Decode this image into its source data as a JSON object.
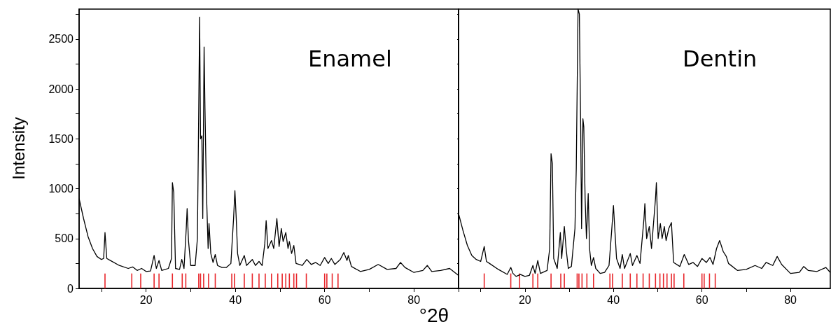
{
  "chart_data": [
    {
      "type": "line",
      "ylabel": "Intensity",
      "xlabel": "°2θ",
      "annotations": [
        "Enamel"
      ],
      "xlim": [
        5,
        90
      ],
      "ylim": [
        0,
        2800
      ],
      "xticks": [
        {
          "value": 10,
          "label": null
        },
        20,
        {
          "value": 30,
          "label": null
        },
        40,
        {
          "value": 50,
          "label": null
        },
        60,
        {
          "value": 70,
          "label": null
        },
        80,
        {
          "value": 90,
          "label": null
        }
      ],
      "yticks": [
        0,
        {
          "value": 250,
          "label": null
        },
        500,
        {
          "value": 750,
          "label": null
        },
        1000,
        {
          "value": 1250,
          "label": null
        },
        1500,
        {
          "value": 1750,
          "label": null
        },
        2000,
        {
          "value": 2250,
          "label": null
        },
        2500,
        {
          "value": 2750,
          "label": null
        }
      ],
      "grid": false,
      "marker": "none",
      "line_style": "solid",
      "series": [
        {
          "color": "#000000",
          "x": [
            5,
            6,
            7,
            8,
            9,
            10,
            10.5,
            10.8,
            11.2,
            12,
            14,
            16,
            17,
            18,
            19,
            20,
            21,
            21.8,
            22.3,
            22.9,
            23.5,
            25,
            25.7,
            25.9,
            26.2,
            26.6,
            27.5,
            28,
            28.5,
            29,
            29.2,
            29.5,
            30,
            31,
            31.5,
            31.8,
            32,
            32.2,
            32.5,
            32.7,
            33,
            33.2,
            33.5,
            33.9,
            34.1,
            34.5,
            35,
            35.5,
            36,
            37,
            38,
            39,
            39.6,
            39.9,
            40.2,
            40.5,
            41,
            42,
            42.5,
            43.8,
            44.5,
            45.3,
            46,
            46.6,
            46.9,
            47.3,
            48.1,
            48.6,
            49.3,
            49.8,
            50.3,
            50.7,
            51.3,
            51.8,
            52.1,
            52.6,
            53.1,
            53.6,
            55,
            56,
            57,
            58,
            59,
            60,
            60.8,
            61.5,
            62.3,
            63.5,
            64.3,
            65,
            65.3,
            66,
            68,
            70,
            72,
            74,
            76,
            77,
            78,
            80,
            82,
            83,
            84,
            86,
            88,
            90
          ],
          "values": [
            900,
            700,
            520,
            400,
            320,
            290,
            300,
            560,
            300,
            280,
            230,
            200,
            215,
            180,
            200,
            170,
            175,
            330,
            200,
            280,
            180,
            200,
            300,
            1060,
            960,
            200,
            190,
            290,
            200,
            600,
            800,
            480,
            230,
            230,
            500,
            1800,
            2720,
            1500,
            1530,
            700,
            2420,
            1800,
            1000,
            400,
            650,
            350,
            260,
            340,
            230,
            210,
            210,
            250,
            700,
            980,
            700,
            350,
            230,
            330,
            230,
            290,
            230,
            270,
            230,
            450,
            680,
            400,
            480,
            400,
            700,
            420,
            600,
            470,
            560,
            400,
            470,
            350,
            430,
            250,
            230,
            290,
            240,
            260,
            230,
            310,
            250,
            300,
            240,
            290,
            360,
            280,
            330,
            220,
            170,
            190,
            240,
            190,
            200,
            260,
            210,
            160,
            180,
            230,
            170,
            180,
            200,
            130
          ]
        },
        {
          "type": "bar",
          "color": "#e8262b",
          "x": [
            10.8,
            16.8,
            18.8,
            21.8,
            22.9,
            25.9,
            28.1,
            28.9,
            31.8,
            32.2,
            32.9,
            34.0,
            35.5,
            39.2,
            39.8,
            42.0,
            43.8,
            45.3,
            46.7,
            48.1,
            49.5,
            50.5,
            51.3,
            52.1,
            53.1,
            53.7,
            55.9,
            60.0,
            60.5,
            61.7,
            63.0
          ],
          "values": [
            150,
            150,
            150,
            150,
            150,
            150,
            150,
            150,
            150,
            150,
            150,
            150,
            150,
            150,
            150,
            150,
            150,
            150,
            150,
            150,
            150,
            150,
            150,
            150,
            150,
            150,
            150,
            150,
            150,
            150,
            150
          ]
        }
      ]
    },
    {
      "type": "line",
      "annotations": [
        "Dentin"
      ],
      "xlim": [
        5,
        89
      ],
      "ylim": [
        0,
        2800
      ],
      "tick_labels": "x",
      "xticks": [
        {
          "value": 10,
          "label": null
        },
        20,
        {
          "value": 30,
          "label": null
        },
        40,
        {
          "value": 50,
          "label": null
        },
        60,
        {
          "value": 70,
          "label": null
        },
        80
      ],
      "yticks": [
        0,
        {
          "value": 250,
          "label": null
        },
        500,
        {
          "value": 750,
          "label": null
        },
        1000,
        {
          "value": 1250,
          "label": null
        },
        1500,
        {
          "value": 1750,
          "label": null
        },
        2000,
        {
          "value": 2250,
          "label": null
        },
        2500,
        {
          "value": 2750,
          "label": null
        }
      ],
      "grid": false,
      "marker": "none",
      "line_style": "solid",
      "series": [
        {
          "color": "#000000",
          "x": [
            5,
            6,
            7,
            8,
            9,
            10,
            10.8,
            11.3,
            12,
            14,
            16,
            16.8,
            17.3,
            18,
            19,
            20,
            21,
            21.8,
            22.3,
            22.9,
            23.5,
            25,
            25.6,
            25.9,
            26.2,
            26.5,
            27.3,
            28,
            28.3,
            28.9,
            29.3,
            29.8,
            30.5,
            31.3,
            31.6,
            32,
            32.3,
            32.6,
            32.8,
            33.1,
            33.3,
            33.6,
            33.9,
            34.3,
            34.6,
            35,
            35.5,
            36,
            37,
            38,
            39,
            39.6,
            40,
            40.3,
            40.7,
            41.5,
            42,
            42.5,
            43.8,
            44.3,
            45.3,
            46,
            46.9,
            47.1,
            47.5,
            48.1,
            48.6,
            49.5,
            49.7,
            50.1,
            50.6,
            51,
            51.5,
            51.9,
            52.5,
            53.1,
            53.6,
            55,
            56,
            57,
            58,
            59,
            60,
            61,
            61.8,
            62.5,
            63.3,
            64,
            64.8,
            65.5,
            66,
            68,
            70,
            72,
            73.5,
            74.5,
            76,
            77,
            78,
            80,
            82,
            83,
            84,
            86,
            88,
            89
          ],
          "values": [
            750,
            580,
            430,
            330,
            290,
            270,
            420,
            270,
            250,
            190,
            140,
            210,
            150,
            120,
            140,
            120,
            130,
            230,
            150,
            280,
            150,
            180,
            400,
            1350,
            1250,
            300,
            200,
            560,
            300,
            620,
            400,
            200,
            220,
            600,
            1200,
            2800,
            2750,
            1600,
            600,
            1700,
            1620,
            900,
            500,
            950,
            400,
            230,
            310,
            200,
            150,
            160,
            230,
            580,
            830,
            600,
            300,
            200,
            340,
            200,
            350,
            230,
            330,
            250,
            700,
            850,
            500,
            620,
            400,
            900,
            1060,
            500,
            650,
            500,
            620,
            480,
            600,
            660,
            260,
            220,
            340,
            240,
            260,
            220,
            300,
            260,
            310,
            240,
            400,
            480,
            370,
            320,
            250,
            180,
            190,
            230,
            200,
            260,
            230,
            320,
            240,
            150,
            160,
            220,
            180,
            170,
            210,
            160
          ]
        },
        {
          "type": "bar",
          "color": "#e8262b",
          "x": [
            10.8,
            16.8,
            18.8,
            21.8,
            22.9,
            25.9,
            28.1,
            28.9,
            31.8,
            32.2,
            32.9,
            34.0,
            35.5,
            39.2,
            39.8,
            42.0,
            43.8,
            45.3,
            46.7,
            48.1,
            49.5,
            50.5,
            51.3,
            52.1,
            53.1,
            53.7,
            55.9,
            60.0,
            60.5,
            61.7,
            63.0
          ],
          "values": [
            150,
            150,
            150,
            150,
            150,
            150,
            150,
            150,
            150,
            150,
            150,
            150,
            150,
            150,
            150,
            150,
            150,
            150,
            150,
            150,
            150,
            150,
            150,
            150,
            150,
            150,
            150,
            150,
            150,
            150,
            150
          ]
        }
      ]
    }
  ]
}
